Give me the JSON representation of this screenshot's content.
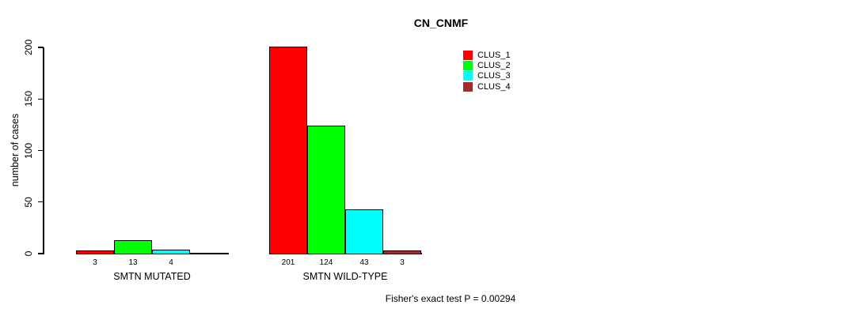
{
  "chart_data": {
    "type": "bar",
    "title": "CN_CNMF",
    "ylabel": "number of cases",
    "xlabel": "",
    "categories": [
      "SMTN MUTATED",
      "SMTN WILD-TYPE"
    ],
    "series": [
      {
        "name": "CLUS_1",
        "color": "#FF0000",
        "values": [
          3,
          201
        ]
      },
      {
        "name": "CLUS_2",
        "color": "#00FF00",
        "values": [
          13,
          124
        ]
      },
      {
        "name": "CLUS_3",
        "color": "#00FFFF",
        "values": [
          4,
          43
        ]
      },
      {
        "name": "CLUS_4",
        "color": "#A52A2A",
        "values": [
          0,
          3
        ]
      }
    ],
    "ylim": [
      0,
      200
    ],
    "yticks": [
      0,
      50,
      100,
      150,
      200
    ],
    "bar_value_labels": [
      [
        "3",
        "13",
        "4",
        ""
      ],
      [
        "201",
        "124",
        "43",
        "3"
      ]
    ],
    "legend_position": "top-right",
    "grid": false,
    "annotation": "Fisher's exact test P = 0.00294",
    "axis_color": "#000000",
    "text_color": "#000000",
    "background_color": "#FFFFFF"
  }
}
